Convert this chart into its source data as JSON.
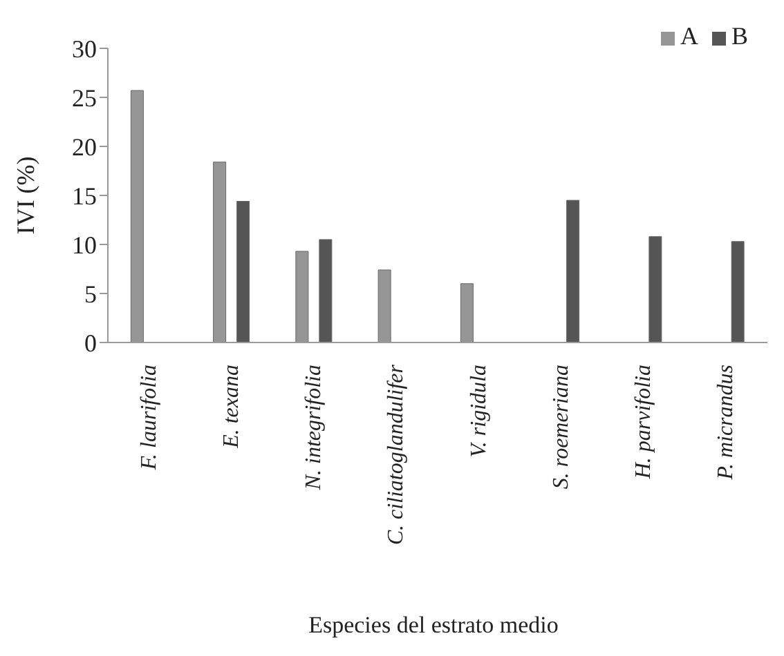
{
  "chart_data": {
    "type": "bar",
    "xlabel": "Especies del estrato medio",
    "ylabel": "IVI (%)",
    "categories": [
      "F. laurifolia",
      "E. texana",
      "N. integrifolia",
      "C. ciliatoglandulifer",
      "V. rigidula",
      "S. roemeriana",
      "H. parvifolia",
      "P. micrandus"
    ],
    "series": [
      {
        "name": "A",
        "color": "#969696",
        "values": [
          25.7,
          18.4,
          9.3,
          7.4,
          6.0,
          null,
          null,
          null
        ]
      },
      {
        "name": "B",
        "color": "#555555",
        "values": [
          null,
          14.4,
          10.5,
          null,
          null,
          14.5,
          10.8,
          10.3
        ]
      }
    ],
    "ylim": [
      0,
      30
    ],
    "yticks": [
      0,
      5,
      10,
      15,
      20,
      25,
      30
    ],
    "grid": false,
    "legend": "top right"
  }
}
